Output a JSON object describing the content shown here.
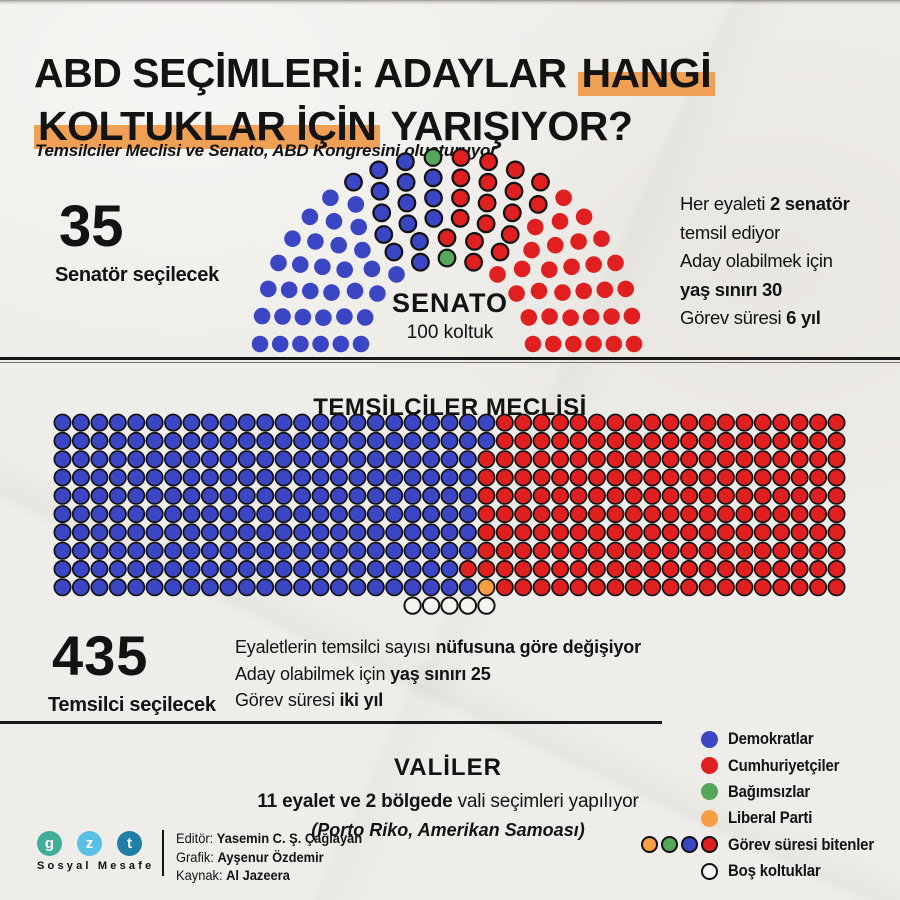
{
  "title": {
    "line1_pre": "ABD SEÇİMLERİ: ADAYLAR ",
    "line1_highlight": "HANGİ",
    "line2_highlight": "KOLTUKLAR İÇİN",
    "line2_post": " YARIŞIYOR?",
    "subtitle": "Temsilciler Meclisi ve Senato, ABD Kongresini oluşturuyor"
  },
  "colors": {
    "background": "#EFEDE9",
    "democrat": "#3A46C4",
    "republican": "#E02020",
    "independent": "#55A857",
    "liberal": "#F79D43",
    "empty": "#F7F5F1",
    "outline": "#121212",
    "highlight": "#F0A055"
  },
  "senate": {
    "stat_number": "35",
    "stat_label": "Senatör seçilecek",
    "chart_label": "SENATO",
    "chart_sublabel": "100 koltuk",
    "info": {
      "l1_pre": "Her eyaleti ",
      "l1_bold": "2 senatör",
      "l2": "temsil ediyor",
      "l3": "Aday olabilmek için",
      "l4_bold": "yaş sınırı 30",
      "l5_pre": "Görev süresi ",
      "l5_bold": "6 yıl"
    }
  },
  "house": {
    "section_title": "TEMSİLCİLER MECLİSİ",
    "stat_number": "435",
    "stat_label": "Temsilci seçilecek",
    "info": {
      "l1_pre": "Eyaletlerin temsilci sayısı ",
      "l1_bold": "nüfusuna göre değişiyor",
      "l2_pre": "Aday olabilmek için ",
      "l2_bold": "yaş sınırı 25",
      "l3_pre": "Görev süresi ",
      "l3_bold": "iki yıl"
    }
  },
  "governors": {
    "section_title": "VALİLER",
    "line1_bold": "11 eyalet ve 2 bölgede",
    "line1_post": " vali seçimleri yapılıyor",
    "line2": "(Porto Riko, Amerikan Samoası)"
  },
  "legend": {
    "items": [
      {
        "label": "Demokratlar",
        "color_key": "democrat",
        "outlined": false
      },
      {
        "label": "Cumhuriyetçiler",
        "color_key": "republican",
        "outlined": false
      },
      {
        "label": "Bağımsızlar",
        "color_key": "independent",
        "outlined": false
      },
      {
        "label": "Liberal Parti",
        "color_key": "liberal",
        "outlined": false
      },
      {
        "label": "Görev süresi bitenler",
        "multi": [
          "liberal",
          "independent",
          "democrat",
          "republican"
        ],
        "outlined": true
      },
      {
        "label": "Boş koltuklar",
        "color_key": "empty",
        "outlined": true
      }
    ]
  },
  "footer": {
    "logo_letters": [
      {
        "char": "g",
        "color": "#41AE9B"
      },
      {
        "char": "z",
        "color": "#59BFE3"
      },
      {
        "char": "t",
        "color": "#1F7FA7"
      }
    ],
    "logo_caption": "Sosyal Mesafe",
    "credits": [
      {
        "label": "Editör:",
        "value": "Yasemin C. Ş. Çağlayan"
      },
      {
        "label": "Grafik:",
        "value": "Ayşenur Özdemir"
      },
      {
        "label": "Kaynak:",
        "value": "Al Jazeera"
      }
    ]
  },
  "chart_data": [
    {
      "type": "parliament-hemicycle",
      "title": "SENATO",
      "subtitle": "100 koltuk",
      "total_seats": 100,
      "rows": [
        11,
        13,
        16,
        18,
        20,
        22
      ],
      "series": [
        {
          "name": "Demokratlar",
          "seats": 48,
          "color_key": "democrat"
        },
        {
          "name": "Bağımsızlar",
          "seats": 2,
          "color_key": "independent"
        },
        {
          "name": "Cumhuriyetçiler",
          "seats": 50,
          "color_key": "republican"
        }
      ],
      "contested_seats": 35,
      "contested_range_start": 33,
      "annotation": "35 Senatör seçilecek"
    },
    {
      "type": "seat-grid",
      "title": "TEMSİLCİLER MECLİSİ",
      "total_seats": 435,
      "columns": 43,
      "full_rows": 10,
      "dem_per_row": [
        24,
        24,
        23,
        23,
        23,
        23,
        23,
        23,
        22,
        23
      ],
      "liberal_seat": {
        "row": 9,
        "col": 23
      },
      "empty_row": {
        "row": 10,
        "cols": [
          19,
          20,
          21,
          22,
          23
        ]
      },
      "annotation": "435 Temsilci seçilecek"
    }
  ]
}
